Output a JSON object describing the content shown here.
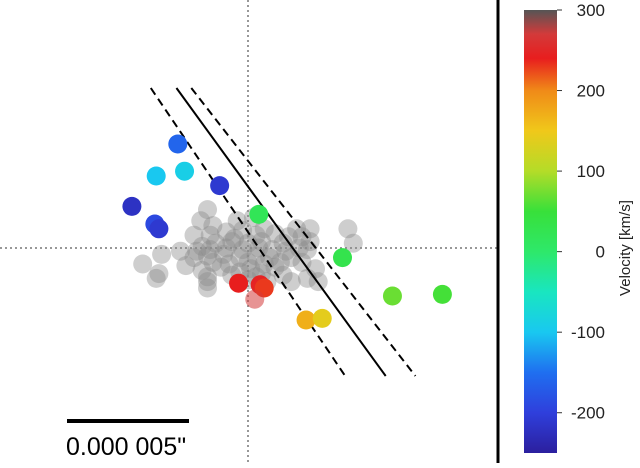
{
  "chart_data": {
    "type": "scatter",
    "title": "",
    "scale_bar": {
      "label": "0.000 005\""
    },
    "colorbar": {
      "label": "Velocity [km/s]",
      "min": -250,
      "max": 300,
      "ticks": [
        300,
        200,
        100,
        0,
        -100,
        -200
      ],
      "colors": [
        {
          "value": -250,
          "color": "#2b1f9e"
        },
        {
          "value": -200,
          "color": "#2f3fdc"
        },
        {
          "value": -150,
          "color": "#1f6ff0"
        },
        {
          "value": -100,
          "color": "#19c8f0"
        },
        {
          "value": -50,
          "color": "#19e6c0"
        },
        {
          "value": 0,
          "color": "#2ee86a"
        },
        {
          "value": 50,
          "color": "#38e03a"
        },
        {
          "value": 100,
          "color": "#b4dc28"
        },
        {
          "value": 150,
          "color": "#f0c81a"
        },
        {
          "value": 200,
          "color": "#f08a18"
        },
        {
          "value": 240,
          "color": "#e81e1e"
        },
        {
          "value": 270,
          "color": "#d33a3a"
        },
        {
          "value": 300,
          "color": "#555555"
        }
      ]
    },
    "velocity_points": [
      {
        "x": -2.6,
        "y": 3.25,
        "v": -160
      },
      {
        "x": -3.4,
        "y": 2.25,
        "v": -100
      },
      {
        "x": -2.35,
        "y": 2.4,
        "v": -90
      },
      {
        "x": -1.05,
        "y": 1.95,
        "v": -210
      },
      {
        "x": -4.3,
        "y": 1.3,
        "v": -220
      },
      {
        "x": -3.45,
        "y": 0.75,
        "v": -190
      },
      {
        "x": -3.3,
        "y": 0.6,
        "v": -210
      },
      {
        "x": 0.4,
        "y": 1.05,
        "v": 20
      },
      {
        "x": 3.5,
        "y": -0.3,
        "v": 30
      },
      {
        "x": -0.35,
        "y": -1.1,
        "v": 240
      },
      {
        "x": 0.45,
        "y": -1.15,
        "v": 245
      },
      {
        "x": 0.6,
        "y": -1.25,
        "v": 230
      },
      {
        "x": 0.25,
        "y": -1.6,
        "v": 270
      },
      {
        "x": 5.35,
        "y": -1.5,
        "v": 70
      },
      {
        "x": 7.2,
        "y": -1.45,
        "v": 55
      },
      {
        "x": 2.15,
        "y": -2.25,
        "v": 170
      },
      {
        "x": 2.75,
        "y": -2.2,
        "v": 140
      }
    ],
    "grey_points": [
      [
        -1.5,
        1.2
      ],
      [
        -1.75,
        0.85
      ],
      [
        -1.3,
        0.7
      ],
      [
        -0.4,
        0.85
      ],
      [
        0.2,
        0.95
      ],
      [
        0.6,
        0.6
      ],
      [
        1.8,
        0.6
      ],
      [
        2.3,
        0.6
      ],
      [
        3.7,
        0.6
      ],
      [
        -2.0,
        0.4
      ],
      [
        -1.4,
        0.4
      ],
      [
        -0.8,
        0.5
      ],
      [
        -0.2,
        0.55
      ],
      [
        0.3,
        0.4
      ],
      [
        1.0,
        0.45
      ],
      [
        1.5,
        0.35
      ],
      [
        2.0,
        0.35
      ],
      [
        2.3,
        0.2
      ],
      [
        -1.7,
        0.05
      ],
      [
        -1.2,
        0.15
      ],
      [
        -0.6,
        0.2
      ],
      [
        0.0,
        0.15
      ],
      [
        0.5,
        0.2
      ],
      [
        1.3,
        0.15
      ],
      [
        1.9,
        0.0
      ],
      [
        3.9,
        0.15
      ],
      [
        -2.5,
        -0.1
      ],
      [
        -1.9,
        -0.1
      ],
      [
        -1.4,
        -0.05
      ],
      [
        -0.8,
        0.0
      ],
      [
        -0.2,
        -0.05
      ],
      [
        0.4,
        0.0
      ],
      [
        0.9,
        -0.05
      ],
      [
        1.4,
        -0.1
      ],
      [
        2.2,
        -0.05
      ],
      [
        -3.2,
        -0.2
      ],
      [
        -2.0,
        -0.3
      ],
      [
        -1.5,
        -0.25
      ],
      [
        -0.9,
        -0.2
      ],
      [
        -0.3,
        -0.3
      ],
      [
        0.3,
        -0.25
      ],
      [
        0.8,
        -0.3
      ],
      [
        1.6,
        -0.3
      ],
      [
        -3.9,
        -0.5
      ],
      [
        -2.3,
        -0.55
      ],
      [
        -1.3,
        -0.45
      ],
      [
        -0.7,
        -0.5
      ],
      [
        0.0,
        -0.45
      ],
      [
        0.6,
        -0.5
      ],
      [
        1.2,
        -0.45
      ],
      [
        2.0,
        -0.45
      ],
      [
        -3.3,
        -0.8
      ],
      [
        -1.7,
        -0.7
      ],
      [
        -0.3,
        -0.75
      ],
      [
        0.5,
        -0.8
      ],
      [
        2.5,
        -0.65
      ],
      [
        -3.4,
        -0.95
      ],
      [
        -1.5,
        -0.9
      ],
      [
        -0.6,
        -0.85
      ],
      [
        0.3,
        -0.9
      ],
      [
        1.3,
        -0.85
      ],
      [
        2.2,
        -0.95
      ],
      [
        -1.5,
        -1.05
      ],
      [
        0.7,
        -1.05
      ],
      [
        -1.5,
        -1.25
      ],
      [
        0.0,
        -1.0
      ],
      [
        1.6,
        -1.05
      ],
      [
        2.6,
        -1.05
      ],
      [
        1.0,
        -0.6
      ],
      [
        -0.5,
        0.3
      ],
      [
        0.1,
        -0.65
      ],
      [
        -1.0,
        -0.6
      ]
    ],
    "lines": [
      {
        "style": "solid",
        "x1": -2.65,
        "y1": 5.0,
        "x2": 5.1,
        "y2": -4.0
      },
      {
        "style": "dashed",
        "x1": -3.6,
        "y1": 5.0,
        "x2": 3.6,
        "y2": -4.0
      },
      {
        "style": "dashed",
        "x1": -2.1,
        "y1": 5.0,
        "x2": 6.2,
        "y2": -4.0
      }
    ],
    "plot_range": {
      "xlim": [
        -5,
        5
      ],
      "ylim": [
        -4.0,
        4.9
      ]
    },
    "crosshair": {
      "x": 0,
      "y": 0
    },
    "grid": false
  }
}
